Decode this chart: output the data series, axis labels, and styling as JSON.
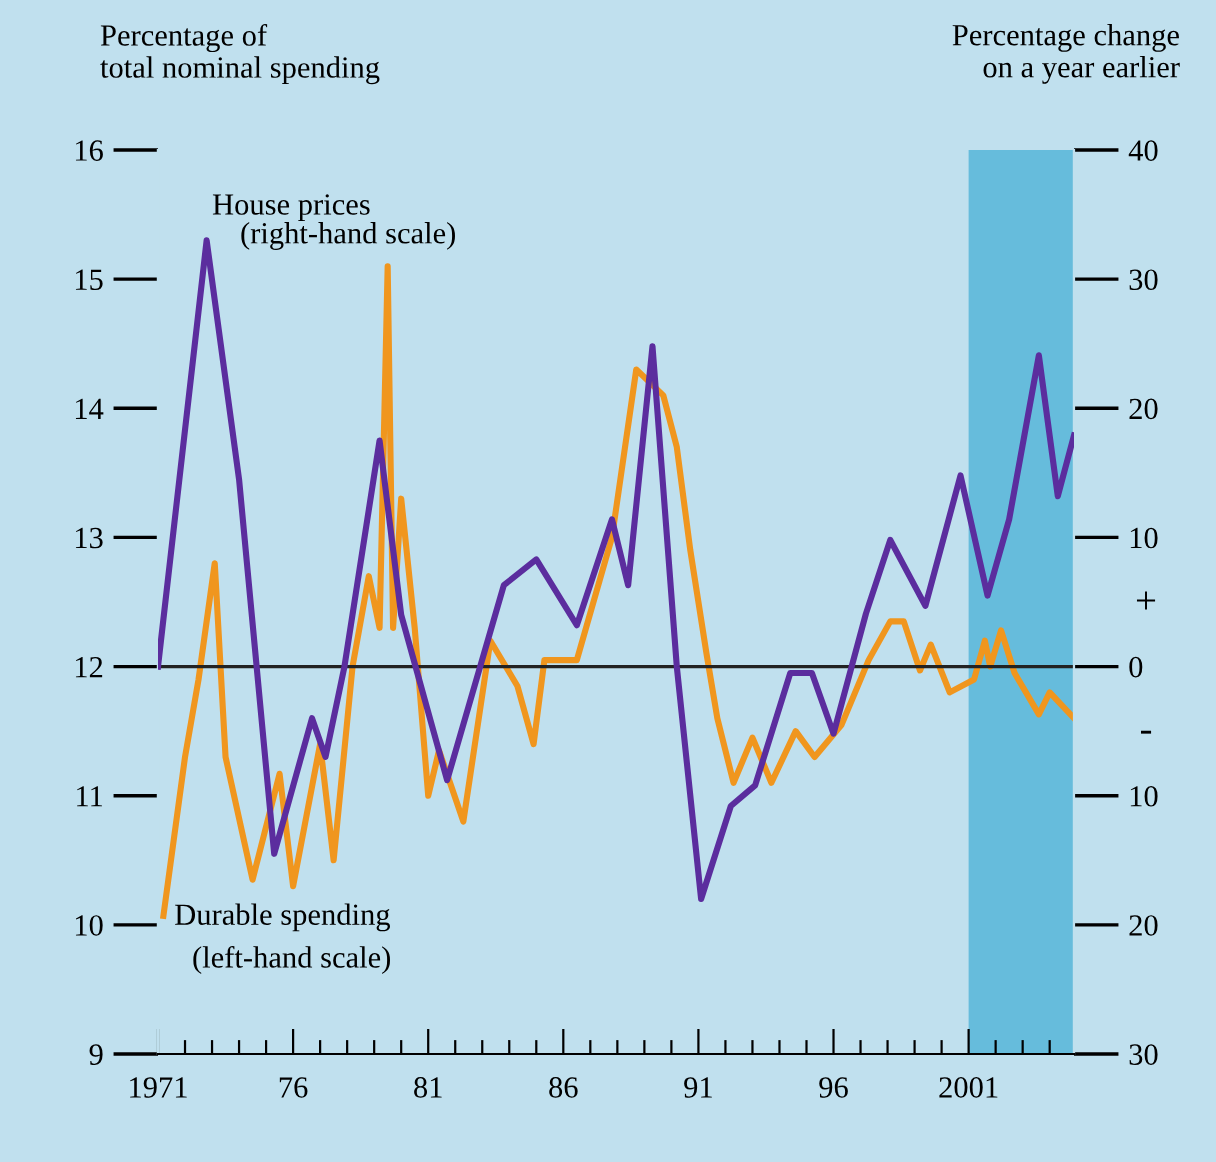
{
  "chart_data": {
    "type": "line",
    "ylabel": "Percentage of\ntotal nominal spending",
    "y2label": "Percentage change\non a year earlier",
    "xlim": [
      1971,
      2004.9
    ],
    "xticks": [
      {
        "value": 1971,
        "label": "1971"
      },
      {
        "value": 1972,
        "label": null
      },
      {
        "value": 1973,
        "label": null
      },
      {
        "value": 1974,
        "label": null
      },
      {
        "value": 1975,
        "label": null
      },
      {
        "value": 1976,
        "label": "76"
      },
      {
        "value": 1977,
        "label": null
      },
      {
        "value": 1978,
        "label": null
      },
      {
        "value": 1979,
        "label": null
      },
      {
        "value": 1980,
        "label": null
      },
      {
        "value": 1981,
        "label": "81"
      },
      {
        "value": 1982,
        "label": null
      },
      {
        "value": 1983,
        "label": null
      },
      {
        "value": 1984,
        "label": null
      },
      {
        "value": 1985,
        "label": null
      },
      {
        "value": 1986,
        "label": "86"
      },
      {
        "value": 1987,
        "label": null
      },
      {
        "value": 1988,
        "label": null
      },
      {
        "value": 1989,
        "label": null
      },
      {
        "value": 1990,
        "label": null
      },
      {
        "value": 1991,
        "label": "91"
      },
      {
        "value": 1992,
        "label": null
      },
      {
        "value": 1993,
        "label": null
      },
      {
        "value": 1994,
        "label": null
      },
      {
        "value": 1995,
        "label": null
      },
      {
        "value": 1996,
        "label": "96"
      },
      {
        "value": 1997,
        "label": null
      },
      {
        "value": 1998,
        "label": null
      },
      {
        "value": 1999,
        "label": null
      },
      {
        "value": 2000,
        "label": null
      },
      {
        "value": 2001,
        "label": "2001"
      },
      {
        "value": 2002,
        "label": null
      },
      {
        "value": 2003,
        "label": null
      },
      {
        "value": 2004,
        "label": null
      }
    ],
    "ylim": [
      9,
      16
    ],
    "yticks": [
      9,
      10,
      11,
      12,
      13,
      14,
      15,
      16
    ],
    "y2lim": [
      -30,
      40
    ],
    "y2ticks": [
      {
        "value": -30,
        "label": "30"
      },
      {
        "value": -20,
        "label": "20"
      },
      {
        "value": -10,
        "label": "10"
      },
      0,
      10,
      20,
      30,
      40
    ],
    "grid": false,
    "line_style": "solid",
    "marker": "none",
    "series": [
      {
        "name": "House prices",
        "color": "#5b2d9e",
        "axis": "y2",
        "x": [
          1971.0,
          1972.8,
          1974.0,
          1975.3,
          1976.7,
          1977.2,
          1977.9,
          1979.2,
          1980.0,
          1981.7,
          1983.8,
          1985.0,
          1986.5,
          1987.8,
          1988.4,
          1989.3,
          1990.2,
          1991.1,
          1992.2,
          1993.1,
          1994.4,
          1995.2,
          1996.0,
          1997.2,
          1998.1,
          1999.4,
          2000.7,
          2001.7,
          2002.5,
          2003.6,
          2004.3,
          2004.9
        ],
        "values": [
          0,
          33,
          14.5,
          -14.5,
          -4,
          -7,
          0,
          17.5,
          4,
          -8.8,
          6.3,
          8.3,
          3.2,
          11.4,
          6.3,
          24.8,
          0,
          -18,
          -10.8,
          -9.2,
          -0.5,
          -0.5,
          -5.2,
          4.1,
          9.8,
          4.7,
          14.8,
          5.5,
          11.4,
          24.1,
          13.2,
          17.9
        ]
      },
      {
        "name": "Durable spending",
        "color": "#f0961e",
        "axis": "y",
        "x": [
          1971.2,
          1972.0,
          1972.5,
          1973.1,
          1973.5,
          1974.5,
          1975.5,
          1976.0,
          1977.0,
          1977.5,
          1978.2,
          1978.8,
          1979.2,
          1979.5,
          1979.7,
          1980.0,
          1980.5,
          1981.0,
          1981.4,
          1982.3,
          1983.3,
          1984.3,
          1984.9,
          1985.3,
          1986.5,
          1987.8,
          1988.7,
          1989.7,
          1990.2,
          1990.7,
          1991.3,
          1991.7,
          1992.3,
          1993.0,
          1993.7,
          1994.6,
          1995.3,
          1996.3,
          1997.3,
          1998.1,
          1998.6,
          1999.2,
          1999.6,
          2000.3,
          2001.2,
          2001.6,
          2001.8,
          2002.2,
          2002.7,
          2003.6,
          2004.0,
          2004.9
        ],
        "values": [
          10.07,
          11.3,
          11.9,
          12.8,
          11.3,
          10.35,
          11.17,
          10.3,
          11.4,
          10.5,
          12.0,
          12.7,
          12.3,
          15.1,
          12.3,
          13.3,
          12.3,
          11.0,
          11.35,
          10.8,
          12.2,
          11.85,
          11.4,
          12.05,
          12.05,
          13.0,
          14.3,
          14.1,
          13.7,
          12.9,
          12.1,
          11.6,
          11.1,
          11.45,
          11.1,
          11.5,
          11.3,
          11.55,
          12.05,
          12.35,
          12.35,
          11.97,
          12.17,
          11.8,
          11.9,
          12.2,
          12.0,
          12.28,
          11.95,
          11.63,
          11.8,
          11.6
        ]
      }
    ],
    "ref_lines": [
      {
        "axis": "y2",
        "value": 0,
        "color": "#222222"
      }
    ],
    "bands": [
      {
        "axis": "x",
        "from": 2001,
        "to": 2004.9,
        "color": "#66bcdc"
      }
    ],
    "annotations": [
      "(right-hand scale)",
      "(left-hand scale)",
      "+",
      "-"
    ]
  }
}
